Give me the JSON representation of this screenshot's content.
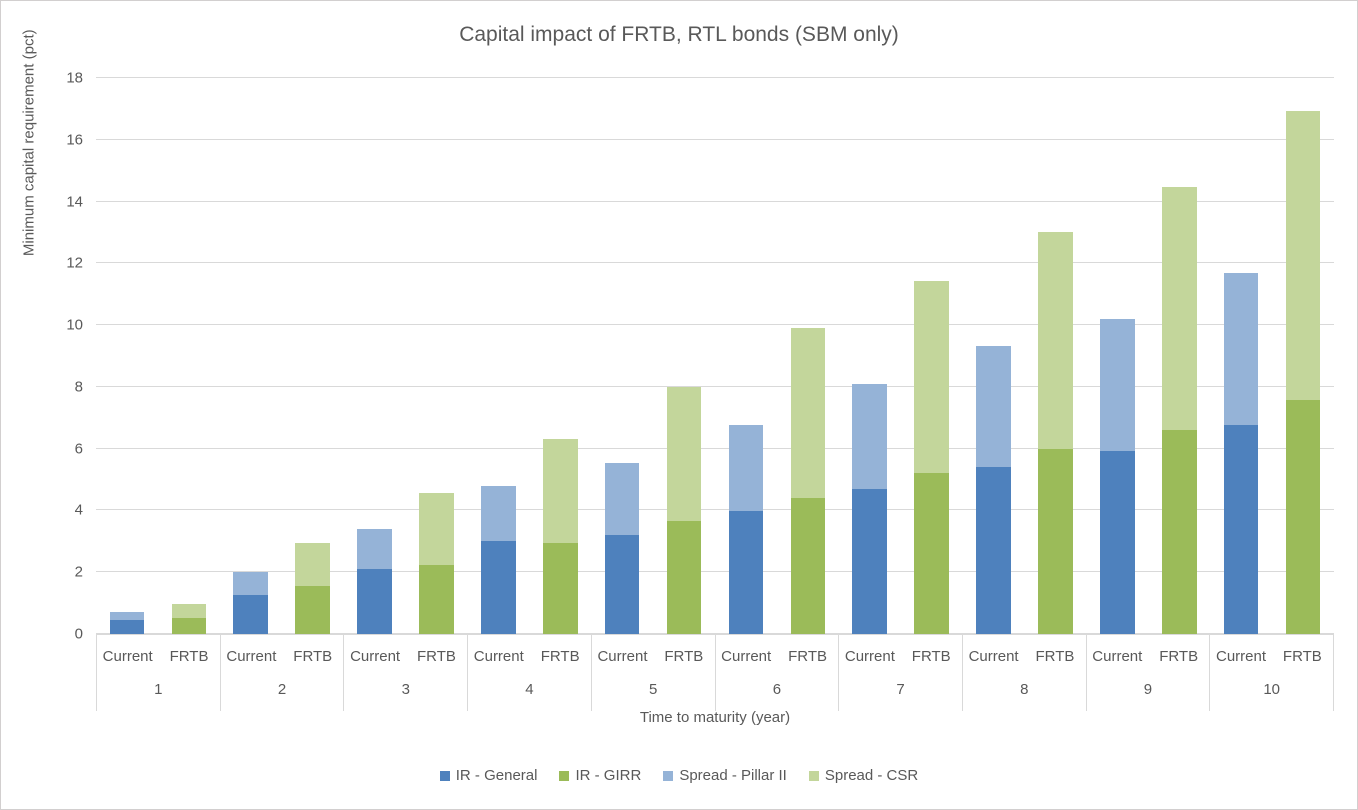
{
  "chart_data": {
    "type": "bar",
    "stacked": true,
    "title": "Capital impact of FRTB, RTL bonds (SBM only)",
    "xlabel": "Time to maturity (year)",
    "ylabel": "Minimum capital requirement (pct)",
    "ylim": [
      0,
      18
    ],
    "ytick_step": 2,
    "grid": true,
    "legend_position": "bottom",
    "categories": [
      "1",
      "2",
      "3",
      "4",
      "5",
      "6",
      "7",
      "8",
      "9",
      "10"
    ],
    "bar_labels": [
      "Current",
      "FRTB"
    ],
    "series": [
      {
        "name": "IR - General",
        "bar": "Current",
        "stack_order": 0,
        "color": "#4e81bd",
        "values": [
          0.45,
          1.27,
          2.12,
          3.02,
          3.22,
          3.98,
          4.7,
          5.41,
          5.92,
          6.77
        ]
      },
      {
        "name": "Spread - Pillar II",
        "bar": "Current",
        "stack_order": 1,
        "color": "#95b3d7",
        "values": [
          0.25,
          0.73,
          1.28,
          1.78,
          2.33,
          2.79,
          3.38,
          3.9,
          4.29,
          4.91
        ]
      },
      {
        "name": "IR - GIRR",
        "bar": "FRTB",
        "stack_order": 0,
        "color": "#9bbb59",
        "values": [
          0.52,
          1.55,
          2.22,
          2.95,
          3.66,
          4.4,
          5.22,
          5.98,
          6.62,
          7.57
        ]
      },
      {
        "name": "Spread - CSR",
        "bar": "FRTB",
        "stack_order": 1,
        "color": "#c3d69b",
        "values": [
          0.46,
          1.4,
          2.35,
          3.37,
          4.33,
          5.5,
          6.22,
          7.04,
          7.85,
          9.36
        ]
      }
    ],
    "bar_totals": {
      "Current": [
        0.7,
        2.0,
        3.4,
        4.8,
        5.55,
        6.77,
        8.08,
        9.31,
        10.21,
        11.68
      ],
      "FRTB": [
        0.98,
        2.95,
        4.57,
        6.32,
        7.99,
        9.9,
        11.44,
        13.02,
        14.47,
        16.93
      ]
    },
    "legend": [
      "IR - General",
      "IR - GIRR",
      "Spread - Pillar II",
      "Spread - CSR"
    ],
    "colors": {
      "grid": "#d9d9d9",
      "text": "#595959",
      "background": "#ffffff"
    }
  }
}
